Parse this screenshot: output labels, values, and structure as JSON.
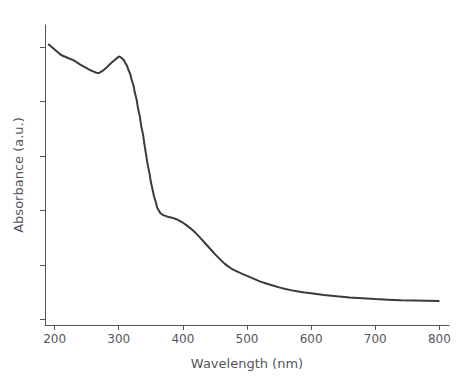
{
  "chart_data": {
    "type": "line",
    "xlabel": "Wavelength (nm)",
    "ylabel": "Absorbance (a.u.)",
    "x": [
      190,
      200,
      210,
      220,
      230,
      240,
      245,
      250,
      255,
      260,
      263,
      265,
      268,
      270,
      275,
      278,
      280,
      283,
      285,
      288,
      290,
      293,
      295,
      298,
      300,
      302,
      305,
      308,
      310,
      313,
      315,
      318,
      320,
      323,
      325,
      328,
      330,
      333,
      335,
      338,
      340,
      345,
      348,
      350,
      355,
      358,
      360,
      363,
      365,
      368,
      370,
      373,
      375,
      378,
      380,
      383,
      385,
      390,
      395,
      400,
      405,
      410,
      415,
      420,
      425,
      430,
      435,
      440,
      445,
      450,
      455,
      460,
      465,
      470,
      475,
      480,
      490,
      500,
      510,
      520,
      530,
      540,
      550,
      560,
      570,
      580,
      590,
      600,
      620,
      640,
      660,
      680,
      700,
      720,
      740,
      760,
      780,
      800
    ],
    "values": [
      1.01,
      0.99,
      0.97,
      0.96,
      0.95,
      0.935,
      0.928,
      0.922,
      0.915,
      0.91,
      0.907,
      0.905,
      0.904,
      0.905,
      0.912,
      0.918,
      0.922,
      0.928,
      0.934,
      0.94,
      0.945,
      0.95,
      0.955,
      0.96,
      0.965,
      0.963,
      0.958,
      0.951,
      0.942,
      0.93,
      0.916,
      0.9,
      0.88,
      0.858,
      0.833,
      0.805,
      0.775,
      0.743,
      0.71,
      0.677,
      0.643,
      0.57,
      0.535,
      0.505,
      0.452,
      0.428,
      0.41,
      0.398,
      0.39,
      0.385,
      0.382,
      0.38,
      0.378,
      0.376,
      0.375,
      0.373,
      0.372,
      0.368,
      0.362,
      0.355,
      0.347,
      0.338,
      0.328,
      0.317,
      0.305,
      0.292,
      0.279,
      0.266,
      0.253,
      0.24,
      0.228,
      0.216,
      0.205,
      0.196,
      0.188,
      0.181,
      0.17,
      0.16,
      0.15,
      0.14,
      0.132,
      0.125,
      0.118,
      0.112,
      0.107,
      0.103,
      0.099,
      0.096,
      0.09,
      0.085,
      0.081,
      0.078,
      0.075,
      0.073,
      0.071,
      0.07,
      0.069,
      0.068
    ],
    "color": "#3a3a3a",
    "xlim": [
      185,
      815
    ],
    "ylim": [
      -0.02,
      1.08
    ],
    "xticks": [
      200,
      300,
      400,
      500,
      600,
      700,
      800
    ],
    "yticks": [
      0,
      0.2,
      0.4,
      0.6,
      0.8,
      1.0
    ],
    "tick_labels": "x",
    "grid": false
  }
}
